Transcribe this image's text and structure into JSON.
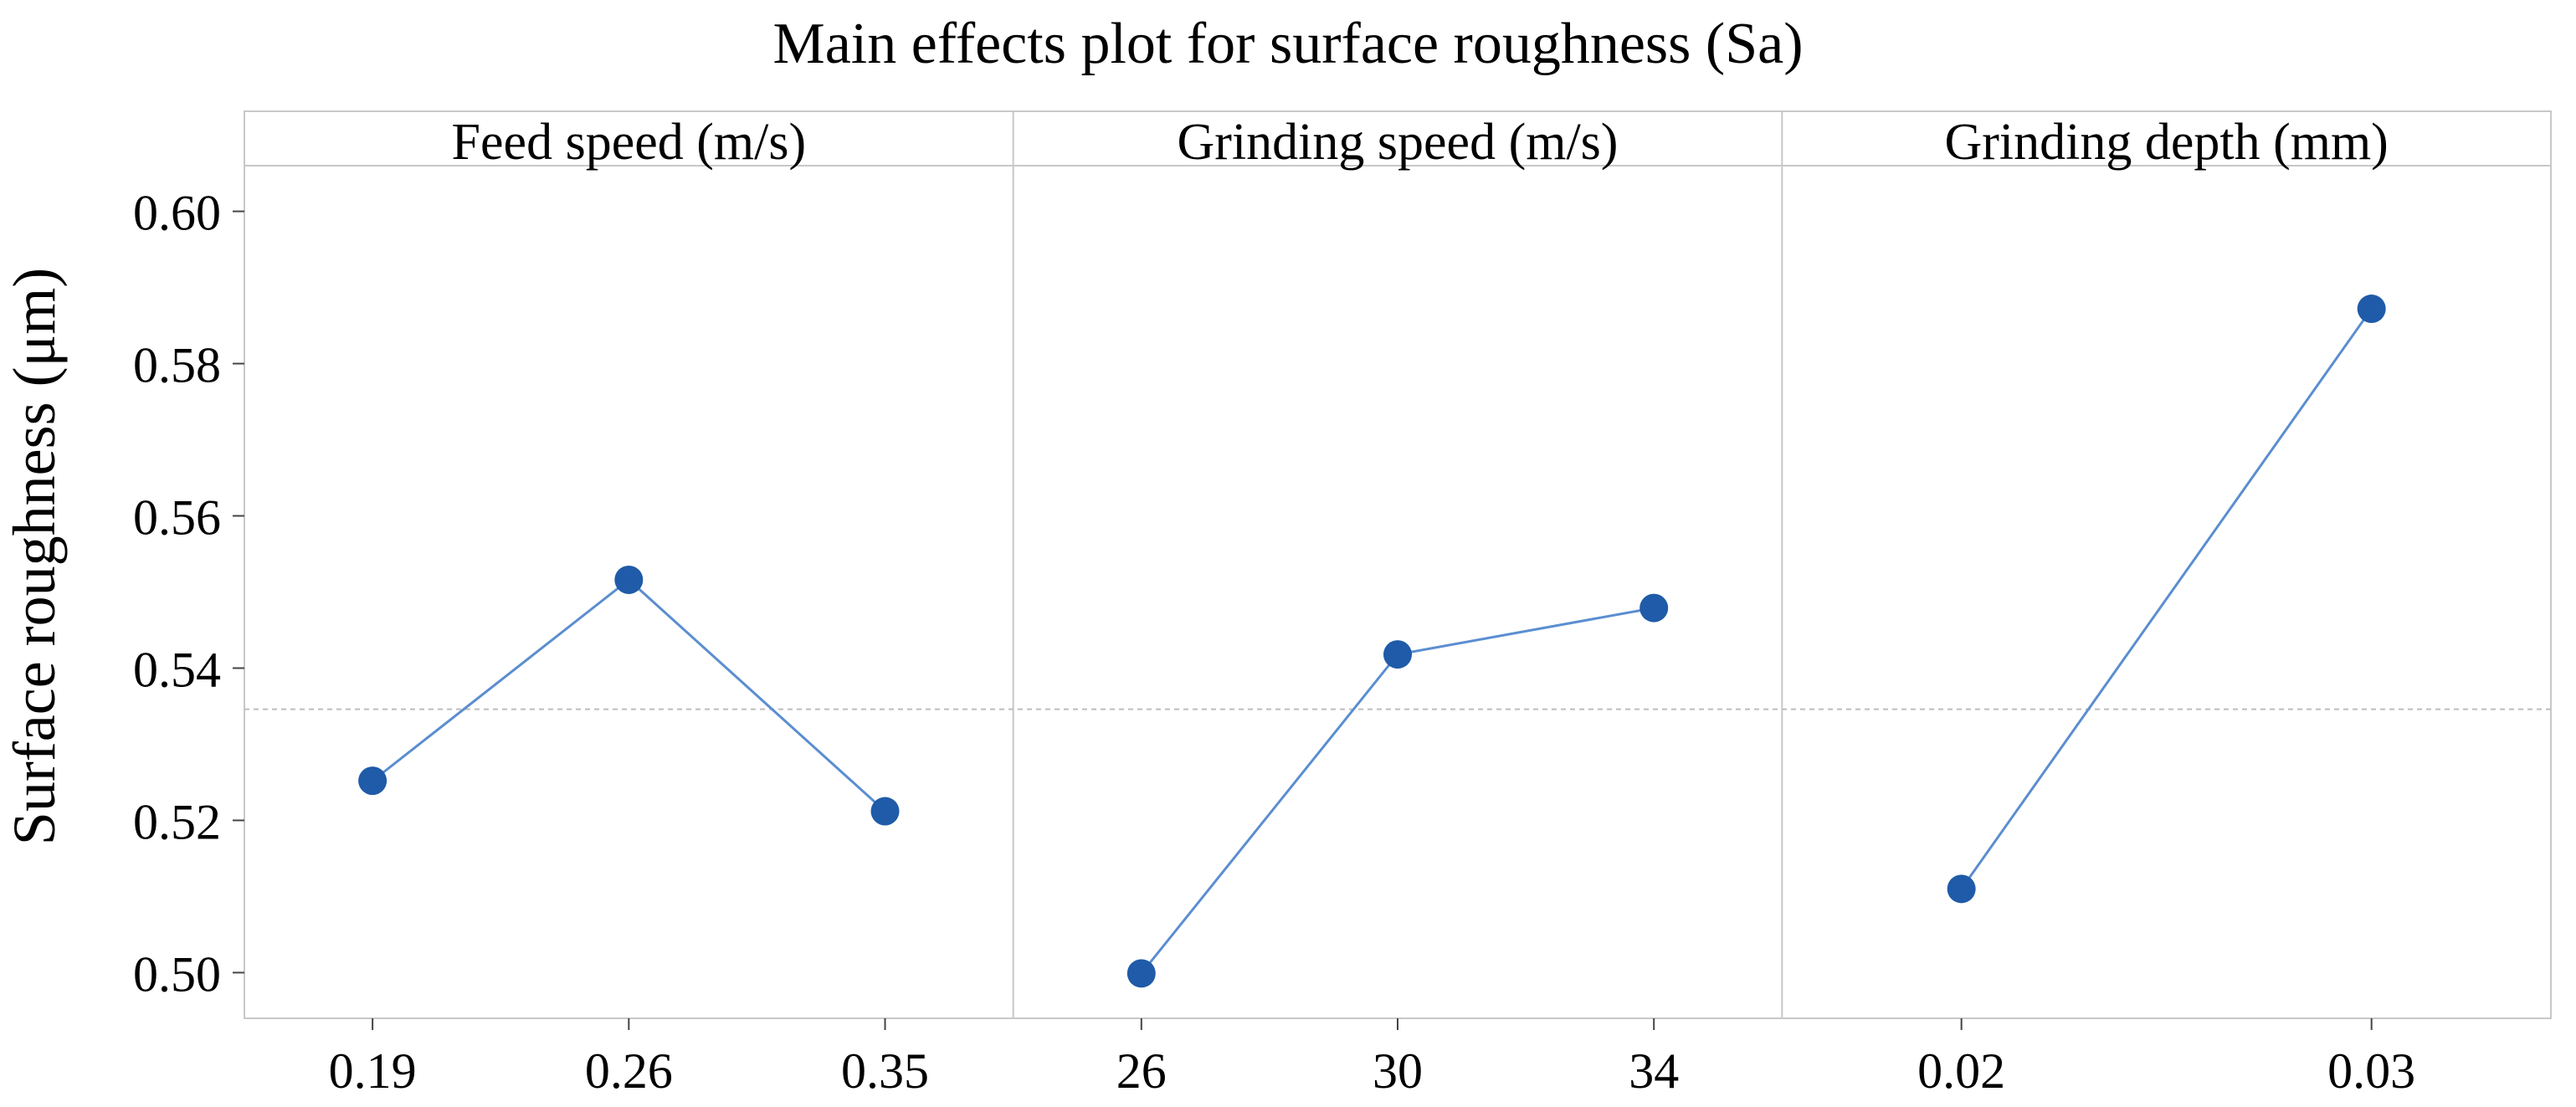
{
  "chart_data": {
    "type": "line",
    "title": "Main effects plot for surface roughness (Sa)",
    "ylabel": "Surface roughness (μm)",
    "ylim": [
      0.494,
      0.606
    ],
    "yticks": [
      "0.50",
      "0.52",
      "0.54",
      "0.56",
      "0.58",
      "0.60"
    ],
    "mean_line": 0.5346,
    "colors": {
      "series": "#1f5ba8",
      "line": "#5b8ed0",
      "frame": "#c8c8c8",
      "mean": "#bdbdbd"
    },
    "panels": [
      {
        "name": "Feed speed (m/s)",
        "categories": [
          "0.19",
          "0.26",
          "0.35"
        ],
        "values": [
          0.5252,
          0.5516,
          0.5212
        ]
      },
      {
        "name": "Grinding speed (m/s)",
        "categories": [
          "26",
          "30",
          "34"
        ],
        "values": [
          0.4999,
          0.5418,
          0.5479
        ]
      },
      {
        "name": "Grinding depth (mm)",
        "categories": [
          "0.02",
          "0.03"
        ],
        "values": [
          0.511,
          0.5872
        ]
      }
    ]
  }
}
